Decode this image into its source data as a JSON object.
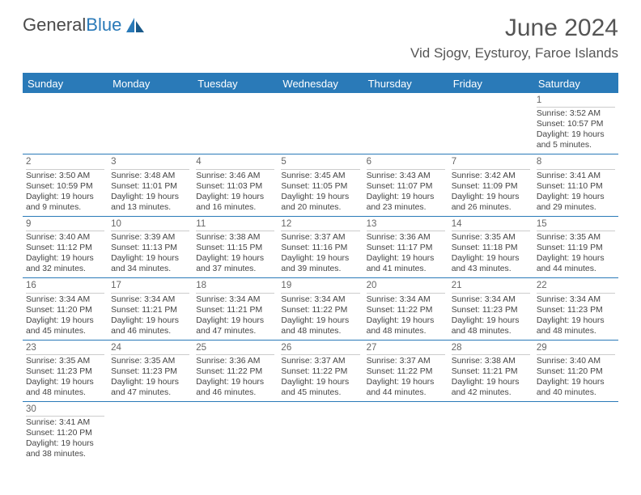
{
  "logo": {
    "text1": "General",
    "text2": "Blue"
  },
  "title": "June 2024",
  "location": "Vid Sjogv, Eysturoy, Faroe Islands",
  "day_names": [
    "Sunday",
    "Monday",
    "Tuesday",
    "Wednesday",
    "Thursday",
    "Friday",
    "Saturday"
  ],
  "colors": {
    "header_bg": "#2a7ab8",
    "text": "#444444"
  },
  "weeks": [
    [
      null,
      null,
      null,
      null,
      null,
      null,
      {
        "d": "1",
        "sr": "Sunrise: 3:52 AM",
        "ss": "Sunset: 10:57 PM",
        "dl1": "Daylight: 19 hours",
        "dl2": "and 5 minutes."
      }
    ],
    [
      {
        "d": "2",
        "sr": "Sunrise: 3:50 AM",
        "ss": "Sunset: 10:59 PM",
        "dl1": "Daylight: 19 hours",
        "dl2": "and 9 minutes."
      },
      {
        "d": "3",
        "sr": "Sunrise: 3:48 AM",
        "ss": "Sunset: 11:01 PM",
        "dl1": "Daylight: 19 hours",
        "dl2": "and 13 minutes."
      },
      {
        "d": "4",
        "sr": "Sunrise: 3:46 AM",
        "ss": "Sunset: 11:03 PM",
        "dl1": "Daylight: 19 hours",
        "dl2": "and 16 minutes."
      },
      {
        "d": "5",
        "sr": "Sunrise: 3:45 AM",
        "ss": "Sunset: 11:05 PM",
        "dl1": "Daylight: 19 hours",
        "dl2": "and 20 minutes."
      },
      {
        "d": "6",
        "sr": "Sunrise: 3:43 AM",
        "ss": "Sunset: 11:07 PM",
        "dl1": "Daylight: 19 hours",
        "dl2": "and 23 minutes."
      },
      {
        "d": "7",
        "sr": "Sunrise: 3:42 AM",
        "ss": "Sunset: 11:09 PM",
        "dl1": "Daylight: 19 hours",
        "dl2": "and 26 minutes."
      },
      {
        "d": "8",
        "sr": "Sunrise: 3:41 AM",
        "ss": "Sunset: 11:10 PM",
        "dl1": "Daylight: 19 hours",
        "dl2": "and 29 minutes."
      }
    ],
    [
      {
        "d": "9",
        "sr": "Sunrise: 3:40 AM",
        "ss": "Sunset: 11:12 PM",
        "dl1": "Daylight: 19 hours",
        "dl2": "and 32 minutes."
      },
      {
        "d": "10",
        "sr": "Sunrise: 3:39 AM",
        "ss": "Sunset: 11:13 PM",
        "dl1": "Daylight: 19 hours",
        "dl2": "and 34 minutes."
      },
      {
        "d": "11",
        "sr": "Sunrise: 3:38 AM",
        "ss": "Sunset: 11:15 PM",
        "dl1": "Daylight: 19 hours",
        "dl2": "and 37 minutes."
      },
      {
        "d": "12",
        "sr": "Sunrise: 3:37 AM",
        "ss": "Sunset: 11:16 PM",
        "dl1": "Daylight: 19 hours",
        "dl2": "and 39 minutes."
      },
      {
        "d": "13",
        "sr": "Sunrise: 3:36 AM",
        "ss": "Sunset: 11:17 PM",
        "dl1": "Daylight: 19 hours",
        "dl2": "and 41 minutes."
      },
      {
        "d": "14",
        "sr": "Sunrise: 3:35 AM",
        "ss": "Sunset: 11:18 PM",
        "dl1": "Daylight: 19 hours",
        "dl2": "and 43 minutes."
      },
      {
        "d": "15",
        "sr": "Sunrise: 3:35 AM",
        "ss": "Sunset: 11:19 PM",
        "dl1": "Daylight: 19 hours",
        "dl2": "and 44 minutes."
      }
    ],
    [
      {
        "d": "16",
        "sr": "Sunrise: 3:34 AM",
        "ss": "Sunset: 11:20 PM",
        "dl1": "Daylight: 19 hours",
        "dl2": "and 45 minutes."
      },
      {
        "d": "17",
        "sr": "Sunrise: 3:34 AM",
        "ss": "Sunset: 11:21 PM",
        "dl1": "Daylight: 19 hours",
        "dl2": "and 46 minutes."
      },
      {
        "d": "18",
        "sr": "Sunrise: 3:34 AM",
        "ss": "Sunset: 11:21 PM",
        "dl1": "Daylight: 19 hours",
        "dl2": "and 47 minutes."
      },
      {
        "d": "19",
        "sr": "Sunrise: 3:34 AM",
        "ss": "Sunset: 11:22 PM",
        "dl1": "Daylight: 19 hours",
        "dl2": "and 48 minutes."
      },
      {
        "d": "20",
        "sr": "Sunrise: 3:34 AM",
        "ss": "Sunset: 11:22 PM",
        "dl1": "Daylight: 19 hours",
        "dl2": "and 48 minutes."
      },
      {
        "d": "21",
        "sr": "Sunrise: 3:34 AM",
        "ss": "Sunset: 11:23 PM",
        "dl1": "Daylight: 19 hours",
        "dl2": "and 48 minutes."
      },
      {
        "d": "22",
        "sr": "Sunrise: 3:34 AM",
        "ss": "Sunset: 11:23 PM",
        "dl1": "Daylight: 19 hours",
        "dl2": "and 48 minutes."
      }
    ],
    [
      {
        "d": "23",
        "sr": "Sunrise: 3:35 AM",
        "ss": "Sunset: 11:23 PM",
        "dl1": "Daylight: 19 hours",
        "dl2": "and 48 minutes."
      },
      {
        "d": "24",
        "sr": "Sunrise: 3:35 AM",
        "ss": "Sunset: 11:23 PM",
        "dl1": "Daylight: 19 hours",
        "dl2": "and 47 minutes."
      },
      {
        "d": "25",
        "sr": "Sunrise: 3:36 AM",
        "ss": "Sunset: 11:22 PM",
        "dl1": "Daylight: 19 hours",
        "dl2": "and 46 minutes."
      },
      {
        "d": "26",
        "sr": "Sunrise: 3:37 AM",
        "ss": "Sunset: 11:22 PM",
        "dl1": "Daylight: 19 hours",
        "dl2": "and 45 minutes."
      },
      {
        "d": "27",
        "sr": "Sunrise: 3:37 AM",
        "ss": "Sunset: 11:22 PM",
        "dl1": "Daylight: 19 hours",
        "dl2": "and 44 minutes."
      },
      {
        "d": "28",
        "sr": "Sunrise: 3:38 AM",
        "ss": "Sunset: 11:21 PM",
        "dl1": "Daylight: 19 hours",
        "dl2": "and 42 minutes."
      },
      {
        "d": "29",
        "sr": "Sunrise: 3:40 AM",
        "ss": "Sunset: 11:20 PM",
        "dl1": "Daylight: 19 hours",
        "dl2": "and 40 minutes."
      }
    ],
    [
      {
        "d": "30",
        "sr": "Sunrise: 3:41 AM",
        "ss": "Sunset: 11:20 PM",
        "dl1": "Daylight: 19 hours",
        "dl2": "and 38 minutes."
      },
      null,
      null,
      null,
      null,
      null,
      null
    ]
  ]
}
